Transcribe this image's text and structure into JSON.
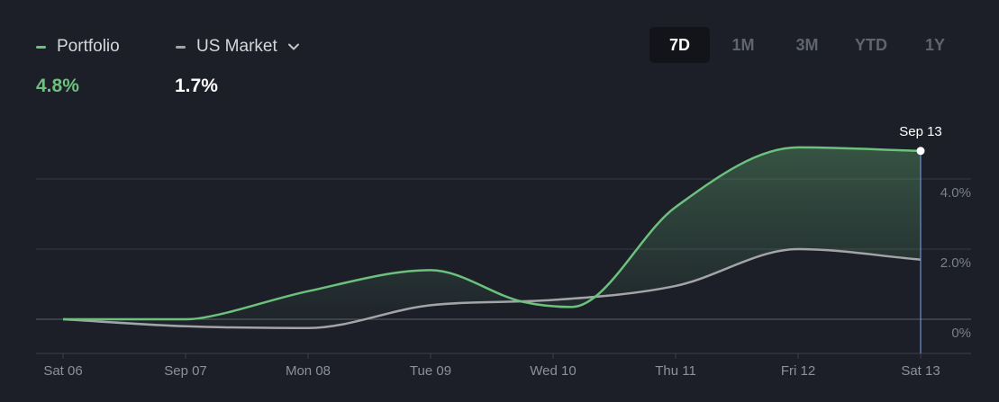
{
  "legend": {
    "portfolio": {
      "label": "Portfolio",
      "value": "4.8%",
      "color": "#6cc17c"
    },
    "market": {
      "label": "US Market",
      "value": "1.7%",
      "color": "#a3a4a8",
      "dropdown_icon": "chevron-down-icon"
    }
  },
  "time_ranges": [
    {
      "label": "7D",
      "active": true
    },
    {
      "label": "1M",
      "active": false
    },
    {
      "label": "3M",
      "active": false
    },
    {
      "label": "YTD",
      "active": false
    },
    {
      "label": "1Y",
      "active": false
    }
  ],
  "tooltip": {
    "label": "Sep 13"
  },
  "chart_data": {
    "type": "line",
    "title": "",
    "xlabel": "",
    "ylabel": "",
    "categories": [
      "Sat 06",
      "Sep 07",
      "Mon 08",
      "Tue 09",
      "Wed 10",
      "Thu 11",
      "Fri 12",
      "Sat 13"
    ],
    "y_tick_labels": [
      "4.0%",
      "2.0%",
      "0%"
    ],
    "y_tick_values": [
      4.0,
      2.0,
      0
    ],
    "ylim": [
      -1,
      6.5
    ],
    "series": [
      {
        "name": "Portfolio",
        "color": "#6cc17c",
        "x": [
          0,
          1,
          1.15,
          2,
          3,
          3.75,
          4.15,
          5,
          6,
          7
        ],
        "values": [
          0,
          0,
          0.05,
          0.8,
          1.4,
          0.5,
          0.35,
          3.2,
          4.9,
          4.8
        ]
      },
      {
        "name": "US Market",
        "color": "#a3a4a8",
        "x": [
          0,
          1,
          2,
          3,
          4,
          5,
          6,
          7
        ],
        "values": [
          0,
          -0.2,
          -0.25,
          0.4,
          0.55,
          0.95,
          2.0,
          1.7
        ]
      }
    ],
    "legend_position": "top-left"
  }
}
